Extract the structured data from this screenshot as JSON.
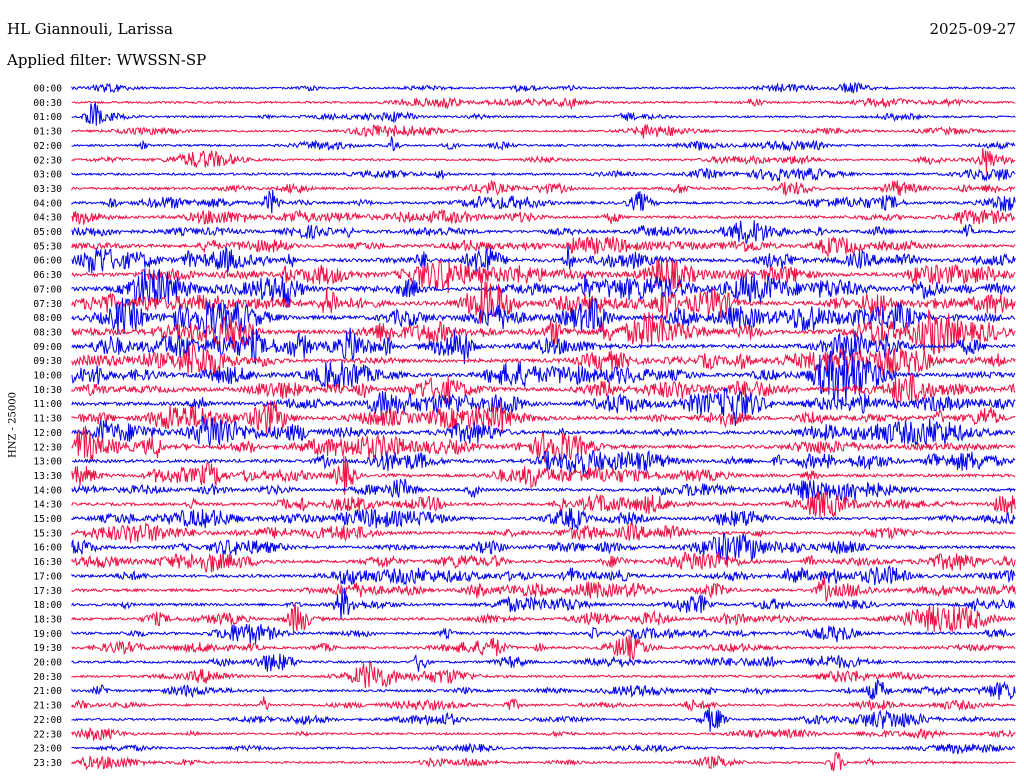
{
  "header": {
    "station": "HL Giannouli, Larissa",
    "date": "2025-09-27",
    "filter": "Applied filter: WWSSN-SP"
  },
  "chart_data": {
    "type": "line",
    "title": "HL Giannouli, Larissa",
    "subtitle": "Applied filter: WWSSN-SP",
    "date": "2025-09-27",
    "ylabel": "HNZ - 25000",
    "grid": false,
    "rows": [
      "00:00",
      "00:30",
      "01:00",
      "01:30",
      "02:00",
      "02:30",
      "03:00",
      "03:30",
      "04:00",
      "04:30",
      "05:00",
      "05:30",
      "06:00",
      "06:30",
      "07:00",
      "07:30",
      "08:00",
      "08:30",
      "09:00",
      "09:30",
      "10:00",
      "10:30",
      "11:00",
      "11:30",
      "12:00",
      "12:30",
      "13:00",
      "13:30",
      "14:00",
      "14:30",
      "15:00",
      "15:30",
      "16:00",
      "16:30",
      "17:00",
      "17:30",
      "18:00",
      "18:30",
      "19:00",
      "19:30",
      "20:00",
      "20:30",
      "21:00",
      "21:30",
      "22:00",
      "22:30",
      "23:00",
      "23:30"
    ],
    "activity": [
      0.25,
      0.3,
      0.3,
      0.25,
      0.3,
      0.35,
      0.4,
      0.45,
      0.5,
      0.55,
      0.6,
      0.7,
      0.85,
      0.95,
      1.0,
      0.95,
      1.0,
      1.0,
      0.95,
      0.9,
      0.95,
      0.9,
      0.9,
      0.85,
      0.8,
      0.8,
      0.75,
      0.7,
      0.65,
      0.65,
      0.6,
      0.6,
      0.65,
      0.6,
      0.7,
      0.6,
      0.55,
      0.55,
      0.5,
      0.45,
      0.4,
      0.4,
      0.45,
      0.4,
      0.35,
      0.3,
      0.3,
      0.3
    ],
    "colors": {
      "even": "#0000ee",
      "odd": "#ee1144"
    }
  }
}
